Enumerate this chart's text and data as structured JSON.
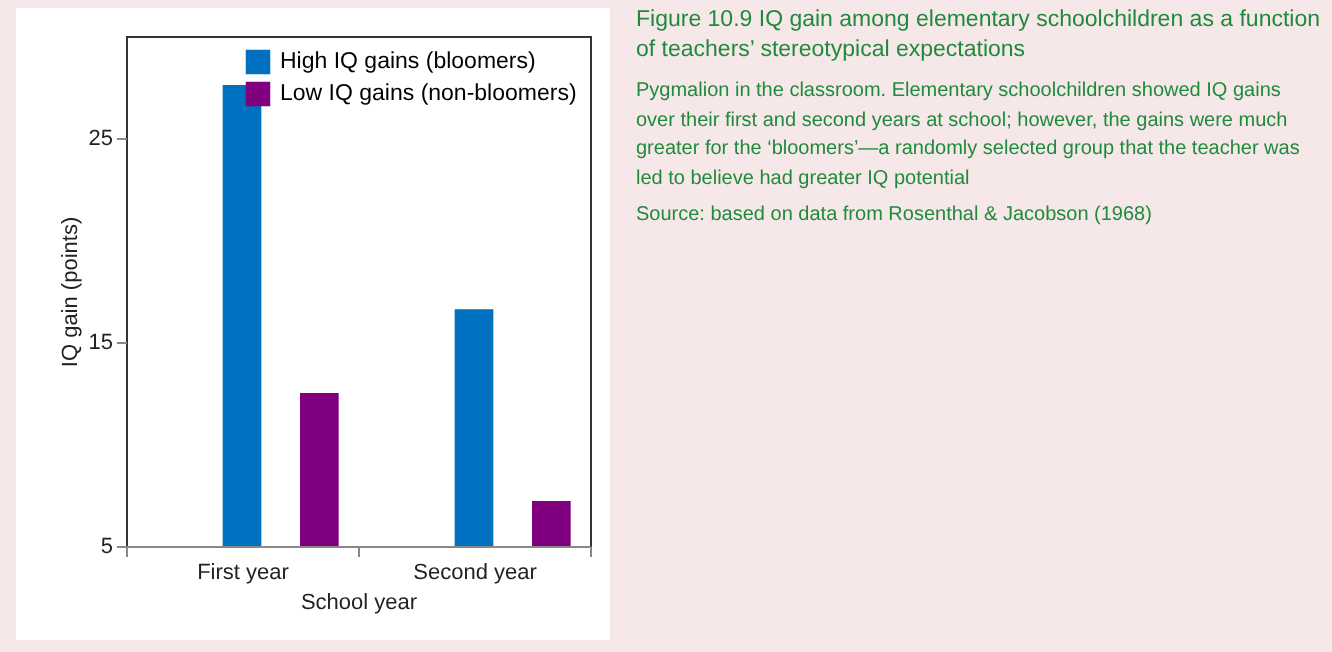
{
  "chart_data": {
    "type": "bar",
    "title": "Figure 10.9 IQ gain among elementary schoolchildren as a function of teachers’ stereotypical expectations",
    "subtitle": "Pygmalion in the classroom. Elementary schoolchildren showed IQ gains over their first and second years at school; however, the gains were much greater for the ‘bloomers’—a randomly selected group that the teacher was led to believe had greater IQ potential",
    "annotations": [
      "Source: based on data from Rosenthal & Jacobson (1968)"
    ],
    "xlabel": "School year",
    "ylabel": "IQ gain (points)",
    "categories": [
      "First year",
      "Second year"
    ],
    "series": [
      {
        "name": "High IQ gains (bloomers)",
        "color": "#0070c0",
        "values": [
          27.6,
          16.6
        ]
      },
      {
        "name": "Low IQ gains (non-bloomers)",
        "color": "#800080",
        "values": [
          12.5,
          7.2
        ]
      }
    ],
    "ylim": [
      5,
      30
    ],
    "yticks": [
      5,
      15,
      25
    ],
    "legend": "top right"
  }
}
